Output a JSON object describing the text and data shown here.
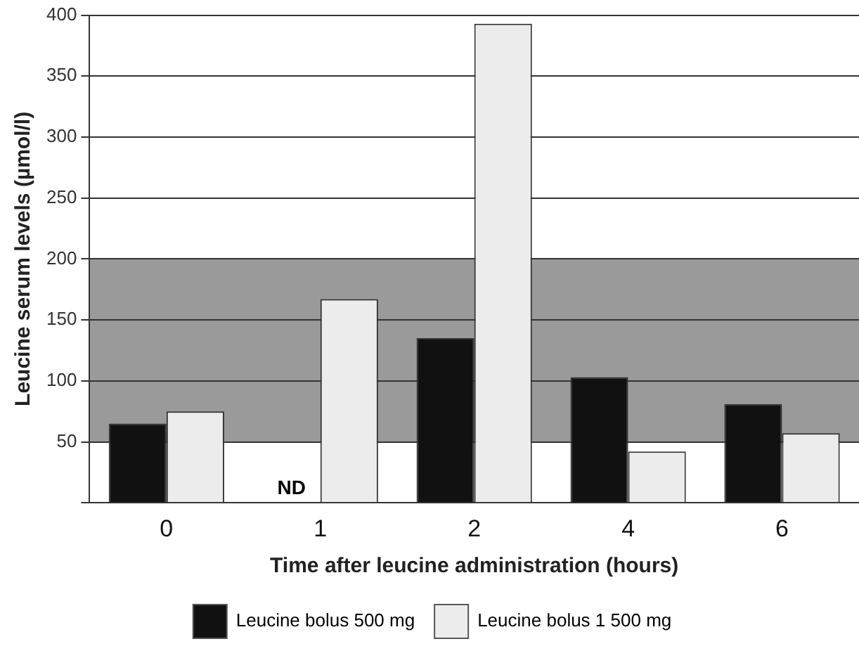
{
  "chart_data": {
    "type": "bar",
    "xlabel": "Time after leucine administration (hours)",
    "ylabel": "Leucine serum levels (µmol/l)",
    "categories": [
      "0",
      "1",
      "2",
      "4",
      "6"
    ],
    "series": [
      {
        "name": "Leucine bolus 500 mg",
        "color": "#111111",
        "values": [
          65,
          null,
          135,
          103,
          81
        ]
      },
      {
        "name": "Leucine bolus 1 500 mg",
        "color": "#ececec",
        "values": [
          75,
          167,
          393,
          42,
          57
        ]
      }
    ],
    "ylim": [
      0,
      400
    ],
    "yticks": [
      {
        "value": 0,
        "label": null
      },
      50,
      100,
      150,
      200,
      250,
      300,
      350,
      400
    ],
    "bands": [
      {
        "axis": "y",
        "from": 50,
        "to": 200,
        "color": "#9a9a9a"
      }
    ],
    "annotations": [
      {
        "text": "ND",
        "x": "1",
        "y": 0
      }
    ],
    "grid": "y",
    "legend": "bottom"
  }
}
